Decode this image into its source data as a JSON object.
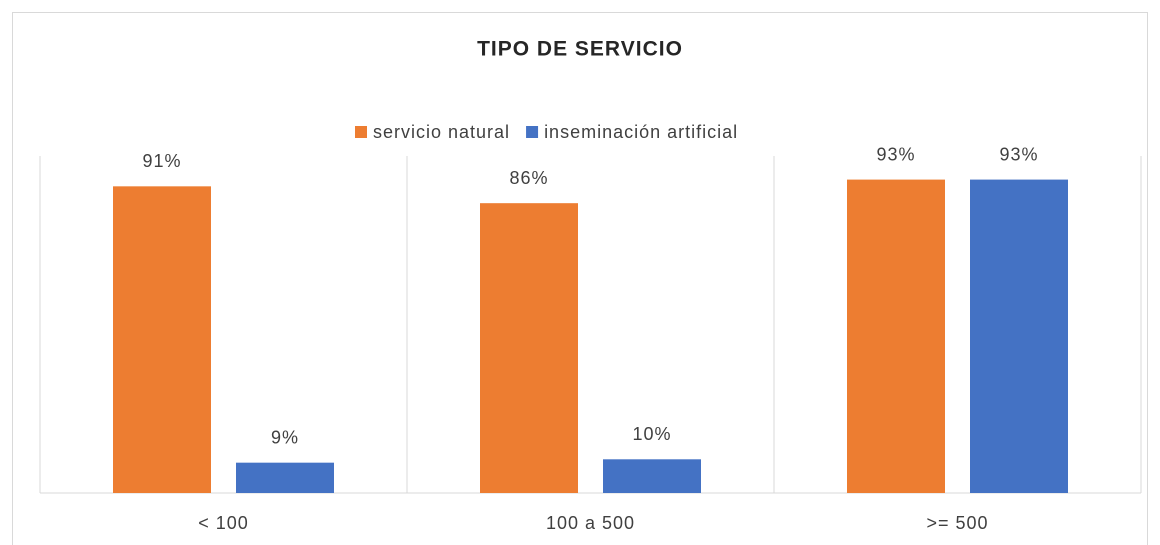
{
  "chart_data": {
    "type": "bar",
    "title": "TIPO DE SERVICIO",
    "categories": [
      "< 100",
      "100 a 500",
      ">= 500"
    ],
    "series": [
      {
        "name": "servicio natural",
        "color": "#ed7d31",
        "values": [
          91,
          86,
          93
        ],
        "value_labels": [
          "91%",
          "86%",
          "93%"
        ]
      },
      {
        "name": "inseminación artificial",
        "color": "#4472c4",
        "values": [
          9,
          10,
          93
        ],
        "value_labels": [
          "9%",
          "10%",
          "93%"
        ]
      }
    ],
    "ylim": [
      0,
      100
    ],
    "legend": "top"
  }
}
